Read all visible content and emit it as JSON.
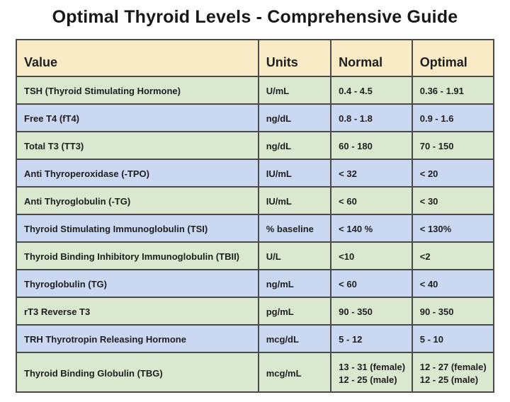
{
  "title": "Optimal Thyroid Levels - Comprehensive Guide",
  "colors": {
    "header_bg": "#f9ebc6",
    "row_green": "#dbe8d0",
    "row_blue": "#cbd8f2",
    "border": "#4a4a4a",
    "text": "#1e1e1e",
    "page_bg": "#ffffff"
  },
  "chart_data": {
    "type": "table",
    "title": "Optimal Thyroid Levels - Comprehensive Guide",
    "columns": [
      "Value",
      "Units",
      "Normal",
      "Optimal"
    ],
    "rows": [
      [
        "TSH (Thyroid Stimulating Hormone)",
        "U/mL",
        "0.4 - 4.5",
        "0.36 - 1.91"
      ],
      [
        "Free T4 (fT4)",
        "ng/dL",
        "0.8 - 1.8",
        "0.9 - 1.6"
      ],
      [
        "Total T3 (TT3)",
        "ng/dL",
        "60 - 180",
        "70 - 150"
      ],
      [
        "Anti Thyroperoxidase (-TPO)",
        "IU/mL",
        "< 32",
        "< 20"
      ],
      [
        "Anti Thyroglobulin (-TG)",
        "IU/mL",
        "< 60",
        "< 30"
      ],
      [
        "Thyroid Stimulating Immunoglobulin (TSI)",
        "% baseline",
        "< 140 %",
        "< 130%"
      ],
      [
        "Thyroid Binding Inhibitory Immunoglobulin (TBII)",
        "U/L",
        "<10",
        "<2"
      ],
      [
        "Thyroglobulin (TG)",
        "ng/mL",
        "< 60",
        "< 40"
      ],
      [
        "rT3 Reverse T3",
        "pg/mL",
        "90 - 350",
        "90 - 350"
      ],
      [
        "TRH Thyrotropin Releasing Hormone",
        "mcg/dL",
        "5 - 12",
        "5 - 10"
      ],
      [
        "Thyroid Binding Globulin (TBG)",
        "mcg/mL",
        "13 - 31 (female)\n12 - 25 (male)",
        "12 - 27 (female)\n12 - 25 (male)"
      ]
    ],
    "layout": {
      "row_stripe_order": [
        "green",
        "blue"
      ],
      "header_background": "#f9ebc6",
      "grid": true
    }
  }
}
